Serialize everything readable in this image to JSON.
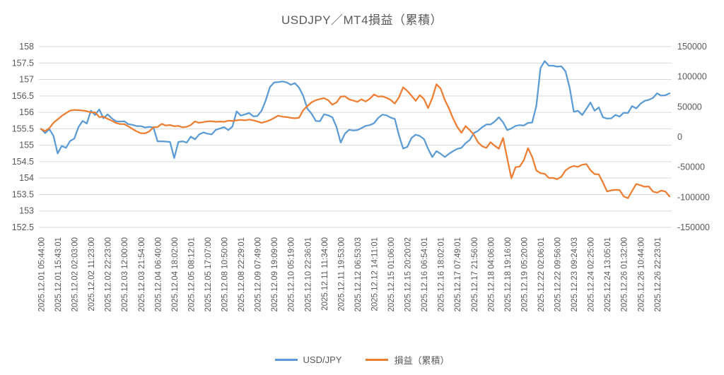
{
  "chart_data": {
    "type": "line",
    "title": "USDJPY／MT4損益（累積）",
    "grid": true,
    "legend_position": "bottom",
    "colors": {
      "grid": "#d9d9d9",
      "text": "#595959",
      "background": "#ffffff"
    },
    "label_every": 4,
    "categories": [
      "2025.12.01 05:44:00",
      "2025.12.01 15:43:01",
      "2025.12.02 02:03:00",
      "2025.12.02 11:23:00",
      "2025.12.02 22:23:00",
      "2025.12.03 12:00:00",
      "2025.12.03 21:54:00",
      "2025.12.04 06:40:00",
      "2025.12.04 18:02:00",
      "2025.12.05 08:12:01",
      "2025.12.05 17:07:00",
      "2025.12.08 10:50:00",
      "2025.12.08 22:29:01",
      "2025.12.09 07:49:00",
      "2025.12.09 19:09:00",
      "2025.12.10 05:19:00",
      "2025.12.10 22:36:01",
      "2025.12.11 11:34:00",
      "2025.12.11 19:53:00",
      "2025.12.12 06:53:03",
      "2025.12.12 14:11:01",
      "2025.12.15 01:06:00",
      "2025.12.15 20:20:02",
      "2025.12.16 06:54:01",
      "2025.12.16 18:02:01",
      "2025.12.17 07:49:01",
      "2025.12.17 21:56:00",
      "2025.12.18 04:06:00",
      "2025.12.18 19:16:00",
      "2025.12.19 05:20:00",
      "2025.12.22 02:06:01",
      "2025.12.22 09:56:00",
      "2025.12.23 09:24:03",
      "2025.12.24 02:25:00",
      "2025.12.24 13:05:01",
      "2025.12.26 01:32:00",
      "2025.12.26 10:44:00",
      "2025.12.26 22:23:01"
    ],
    "left_axis": {
      "min": 152.5,
      "max": 158,
      "step": 0.5,
      "ticks": [
        158,
        157.5,
        157,
        156.5,
        156,
        155.5,
        155,
        154.5,
        154,
        153.5,
        153,
        152.5
      ]
    },
    "right_axis": {
      "min": -150000,
      "max": 150000,
      "step": 50000,
      "ticks": [
        150000,
        100000,
        50000,
        0,
        -50000,
        -100000,
        -150000
      ]
    },
    "series": [
      {
        "name": "USD/JPY",
        "axis": "left",
        "color": "#5B9BD5",
        "values": [
          155.5,
          155.37,
          155.49,
          155.28,
          154.75,
          154.98,
          154.92,
          155.13,
          155.2,
          155.55,
          155.74,
          155.66,
          156.05,
          155.92,
          156.09,
          155.82,
          155.94,
          155.82,
          155.73,
          155.72,
          155.73,
          155.64,
          155.62,
          155.58,
          155.58,
          155.54,
          155.56,
          155.54,
          155.12,
          155.12,
          155.11,
          155.1,
          154.61,
          155.1,
          155.12,
          155.08,
          155.26,
          155.18,
          155.33,
          155.39,
          155.35,
          155.33,
          155.47,
          155.51,
          155.55,
          155.46,
          155.57,
          156.03,
          155.9,
          155.94,
          155.98,
          155.88,
          155.89,
          156.05,
          156.37,
          156.77,
          156.91,
          156.92,
          156.94,
          156.91,
          156.84,
          156.89,
          156.75,
          156.5,
          156.11,
          155.96,
          155.74,
          155.73,
          155.94,
          155.91,
          155.85,
          155.55,
          155.08,
          155.35,
          155.47,
          155.45,
          155.46,
          155.52,
          155.59,
          155.61,
          155.67,
          155.83,
          155.93,
          155.91,
          155.84,
          155.8,
          155.3,
          154.9,
          154.95,
          155.22,
          155.32,
          155.28,
          155.19,
          154.89,
          154.64,
          154.82,
          154.74,
          154.64,
          154.74,
          154.82,
          154.89,
          154.92,
          155.06,
          155.16,
          155.37,
          155.44,
          155.55,
          155.63,
          155.63,
          155.72,
          155.85,
          155.7,
          155.46,
          155.51,
          155.59,
          155.61,
          155.6,
          155.68,
          155.69,
          156.2,
          157.35,
          157.56,
          157.42,
          157.42,
          157.39,
          157.4,
          157.25,
          156.75,
          156.02,
          156.05,
          155.92,
          156.1,
          156.3,
          156.05,
          156.15,
          155.85,
          155.81,
          155.82,
          155.92,
          155.87,
          155.99,
          155.98,
          156.19,
          156.12,
          156.26,
          156.35,
          156.38,
          156.44,
          156.58,
          156.51,
          156.52,
          156.58
        ]
      },
      {
        "name": "損益（累積）",
        "axis": "right",
        "color": "#ED7D31",
        "values": [
          13000,
          9800,
          14800,
          23700,
          29200,
          35000,
          39600,
          43800,
          45000,
          44500,
          43900,
          42900,
          40800,
          41000,
          33100,
          33700,
          30100,
          27100,
          23300,
          21600,
          21400,
          17700,
          13300,
          9300,
          6300,
          6100,
          9300,
          16000,
          16500,
          21800,
          19000,
          19900,
          17800,
          18400,
          16000,
          17000,
          19900,
          25900,
          23600,
          24800,
          25900,
          26300,
          25200,
          25700,
          25200,
          27100,
          26700,
          27700,
          28400,
          27600,
          29000,
          27700,
          25800,
          23600,
          25400,
          28000,
          31600,
          35400,
          33800,
          33200,
          31700,
          31200,
          32000,
          44500,
          51500,
          57500,
          61000,
          63000,
          64500,
          61000,
          53500,
          57500,
          67000,
          67500,
          62500,
          60500,
          58500,
          62500,
          59000,
          63500,
          70500,
          67000,
          67500,
          65000,
          61500,
          55500,
          66000,
          82500,
          76500,
          68500,
          60000,
          69500,
          63000,
          48000,
          64500,
          87500,
          80500,
          61500,
          47500,
          30500,
          17000,
          7000,
          18000,
          11500,
          3500,
          -9000,
          -15500,
          -18000,
          -8500,
          -14500,
          -19500,
          -1500,
          -35500,
          -68500,
          -50000,
          -49000,
          -38500,
          -18500,
          -33000,
          -55500,
          -60000,
          -61000,
          -68000,
          -68000,
          -70000,
          -66000,
          -55500,
          -50500,
          -48000,
          -49500,
          -46000,
          -45000,
          -55000,
          -61500,
          -62000,
          -75500,
          -90500,
          -88500,
          -87500,
          -88000,
          -98500,
          -101500,
          -89500,
          -78000,
          -80000,
          -82500,
          -82000,
          -90500,
          -92500,
          -89000,
          -90500,
          -98500
        ]
      }
    ]
  }
}
